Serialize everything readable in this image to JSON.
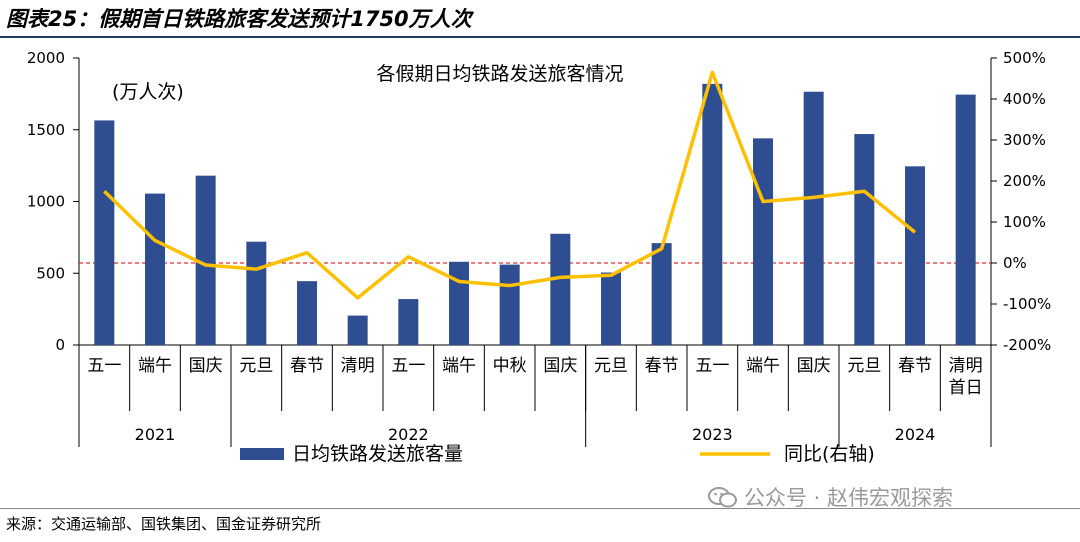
{
  "header": {
    "title": "图表25：假期首日铁路旅客发送预计1750万人次"
  },
  "footer": {
    "source": "来源：交通运输部、国铁集团、国金证券研究所"
  },
  "watermark": {
    "text": "公众号 · 赵伟宏观探索",
    "icon": "wechat-icon"
  },
  "colors": {
    "bar": "#2f4e91",
    "line": "#ffc000",
    "zero_line": "#e03030"
  },
  "chart_data": {
    "type": "bar",
    "title": "各假期日均铁路发送旅客情况",
    "unit_label": "(万人次)",
    "categories": [
      [
        "五一"
      ],
      [
        "端午"
      ],
      [
        "国庆"
      ],
      [
        "元旦"
      ],
      [
        "春节"
      ],
      [
        "清明"
      ],
      [
        "五一"
      ],
      [
        "端午"
      ],
      [
        "中秋"
      ],
      [
        "国庆"
      ],
      [
        "元旦"
      ],
      [
        "春节"
      ],
      [
        "五一"
      ],
      [
        "端午"
      ],
      [
        "国庆"
      ],
      [
        "元旦"
      ],
      [
        "春节"
      ],
      [
        "清明",
        "首日"
      ]
    ],
    "year_groups": [
      {
        "label": "2021",
        "start": 0,
        "end": 2
      },
      {
        "label": "2022",
        "start": 3,
        "end": 9
      },
      {
        "label": "2023",
        "start": 10,
        "end": 14
      },
      {
        "label": "2024",
        "start": 15,
        "end": 17
      }
    ],
    "series": [
      {
        "name": "日均铁路发送旅客量",
        "axis": "left",
        "type": "bar",
        "values": [
          1565,
          1055,
          1180,
          720,
          445,
          205,
          320,
          580,
          560,
          775,
          505,
          710,
          1820,
          1440,
          1765,
          1470,
          1245,
          1745
        ]
      },
      {
        "name": "同比(右轴)",
        "axis": "right",
        "type": "line",
        "values": [
          175,
          55,
          -5,
          -15,
          25,
          -85,
          15,
          -45,
          -55,
          -35,
          -30,
          35,
          465,
          150,
          160,
          175,
          75,
          null
        ]
      }
    ],
    "y_left": {
      "min": 0,
      "max": 2000,
      "ticks": [
        0,
        500,
        1000,
        1500,
        2000
      ]
    },
    "y_right": {
      "min": -200,
      "max": 500,
      "ticks": [
        -200,
        -100,
        0,
        100,
        200,
        300,
        400,
        500
      ],
      "tick_suffix": "%"
    },
    "reference_line": {
      "axis": "right",
      "value": 0,
      "style": "dashed"
    },
    "legend_position": "bottom"
  }
}
